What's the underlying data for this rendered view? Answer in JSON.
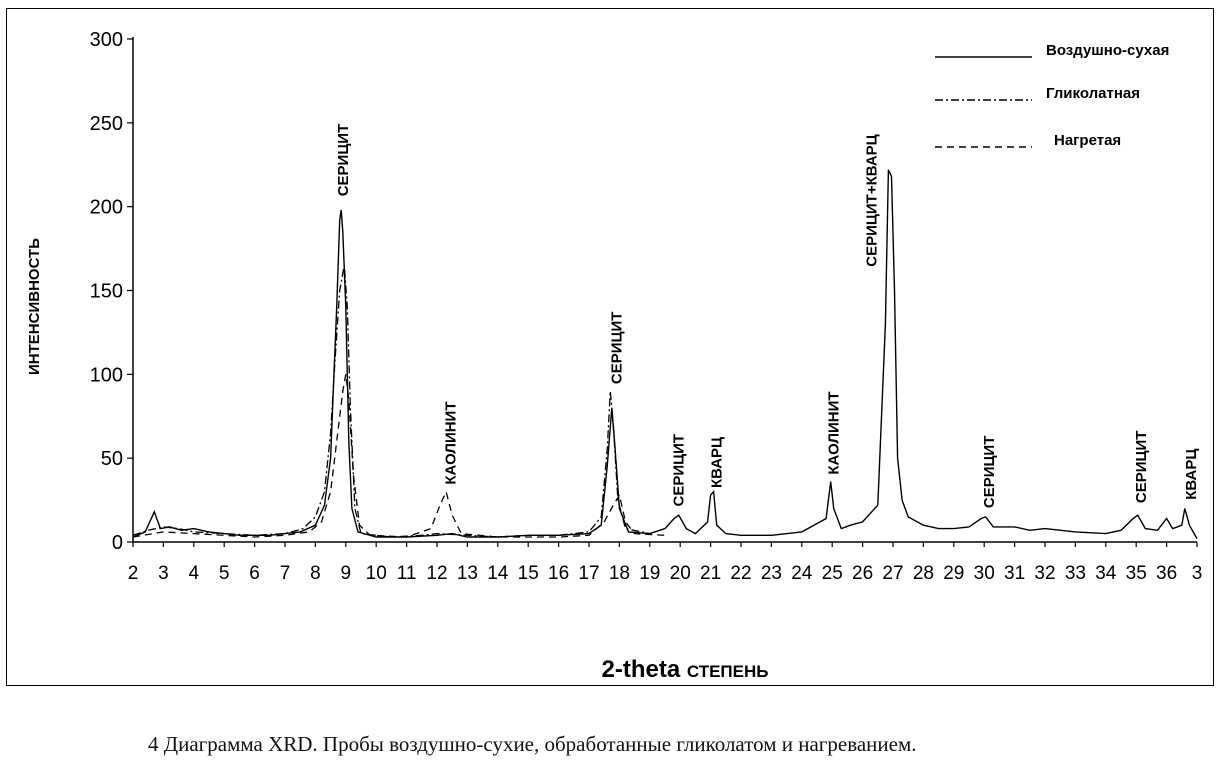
{
  "chart_data": {
    "type": "line",
    "title": "",
    "xlabel": {
      "bold": "2-theta",
      "rest": "СТЕПЕНЬ"
    },
    "ylabel": "ИНТЕНСИВНОСТЬ",
    "xlim": [
      2,
      37
    ],
    "ylim": [
      0,
      300
    ],
    "y_ticks": [
      "0",
      "50",
      "100",
      "150",
      "200",
      "250",
      "300"
    ],
    "x_ticks": [
      "2",
      "3",
      "4",
      "5",
      "6",
      "7",
      "8",
      "9",
      "10",
      "11",
      "12",
      "13",
      "14",
      "15",
      "16",
      "17",
      "18",
      "19",
      "20",
      "21",
      "22",
      "23",
      "24",
      "25",
      "26",
      "27",
      "28",
      "29",
      "30",
      "31",
      "32",
      "33",
      "34",
      "35",
      "36",
      "3"
    ],
    "legend_position": "top-right",
    "series": [
      {
        "name": "Воздушно-сухая",
        "dash": "solid",
        "points": [
          [
            2.0,
            3
          ],
          [
            2.4,
            6
          ],
          [
            2.7,
            18
          ],
          [
            2.9,
            8
          ],
          [
            3.2,
            9
          ],
          [
            3.6,
            7
          ],
          [
            4.0,
            8
          ],
          [
            4.5,
            6
          ],
          [
            5.0,
            5
          ],
          [
            5.5,
            4
          ],
          [
            6.0,
            4
          ],
          [
            6.5,
            4
          ],
          [
            7.0,
            5
          ],
          [
            7.5,
            6
          ],
          [
            8.0,
            10
          ],
          [
            8.3,
            22
          ],
          [
            8.5,
            50
          ],
          [
            8.6,
            95
          ],
          [
            8.7,
            140
          ],
          [
            8.8,
            192
          ],
          [
            8.85,
            198
          ],
          [
            8.9,
            185
          ],
          [
            9.0,
            140
          ],
          [
            9.1,
            60
          ],
          [
            9.2,
            20
          ],
          [
            9.4,
            6
          ],
          [
            10.0,
            3
          ],
          [
            11.0,
            3
          ],
          [
            12.0,
            4
          ],
          [
            12.5,
            5
          ],
          [
            13.0,
            3
          ],
          [
            14.0,
            3
          ],
          [
            15.0,
            4
          ],
          [
            16.0,
            4
          ],
          [
            17.0,
            5
          ],
          [
            17.4,
            10
          ],
          [
            17.6,
            45
          ],
          [
            17.75,
            80
          ],
          [
            17.85,
            58
          ],
          [
            18.0,
            20
          ],
          [
            18.3,
            6
          ],
          [
            19.0,
            5
          ],
          [
            19.5,
            8
          ],
          [
            19.8,
            14
          ],
          [
            19.95,
            16
          ],
          [
            20.2,
            8
          ],
          [
            20.5,
            5
          ],
          [
            20.9,
            12
          ],
          [
            21.0,
            28
          ],
          [
            21.1,
            30
          ],
          [
            21.2,
            10
          ],
          [
            21.5,
            5
          ],
          [
            22.0,
            4
          ],
          [
            23.0,
            4
          ],
          [
            24.0,
            6
          ],
          [
            24.8,
            14
          ],
          [
            24.95,
            36
          ],
          [
            25.05,
            20
          ],
          [
            25.3,
            8
          ],
          [
            25.6,
            10
          ],
          [
            26.0,
            12
          ],
          [
            26.5,
            22
          ],
          [
            26.75,
            130
          ],
          [
            26.85,
            222
          ],
          [
            26.95,
            218
          ],
          [
            27.05,
            150
          ],
          [
            27.15,
            50
          ],
          [
            27.3,
            25
          ],
          [
            27.5,
            15
          ],
          [
            28.0,
            10
          ],
          [
            28.5,
            8
          ],
          [
            29.0,
            8
          ],
          [
            29.5,
            9
          ],
          [
            29.9,
            14
          ],
          [
            30.05,
            15
          ],
          [
            30.3,
            9
          ],
          [
            31.0,
            9
          ],
          [
            31.5,
            7
          ],
          [
            32.0,
            8
          ],
          [
            33.0,
            6
          ],
          [
            34.0,
            5
          ],
          [
            34.5,
            7
          ],
          [
            34.9,
            14
          ],
          [
            35.05,
            16
          ],
          [
            35.3,
            8
          ],
          [
            35.7,
            7
          ],
          [
            36.0,
            14
          ],
          [
            36.2,
            8
          ],
          [
            36.5,
            10
          ],
          [
            36.6,
            20
          ],
          [
            36.75,
            10
          ],
          [
            37.0,
            2
          ]
        ]
      },
      {
        "name": "Гликолатная",
        "dash": "dash-dot",
        "points": [
          [
            2.0,
            4
          ],
          [
            2.5,
            7
          ],
          [
            3.0,
            9
          ],
          [
            3.5,
            8
          ],
          [
            4.0,
            6
          ],
          [
            5.0,
            5
          ],
          [
            6.0,
            4
          ],
          [
            7.0,
            5
          ],
          [
            7.6,
            8
          ],
          [
            8.0,
            15
          ],
          [
            8.3,
            30
          ],
          [
            8.5,
            65
          ],
          [
            8.65,
            110
          ],
          [
            8.8,
            150
          ],
          [
            8.95,
            165
          ],
          [
            9.05,
            140
          ],
          [
            9.15,
            80
          ],
          [
            9.3,
            20
          ],
          [
            9.5,
            5
          ],
          [
            10.5,
            3
          ],
          [
            11.5,
            4
          ],
          [
            12.0,
            5
          ],
          [
            13.0,
            4
          ],
          [
            14.0,
            3
          ],
          [
            15.0,
            4
          ],
          [
            16.0,
            4
          ],
          [
            17.0,
            6
          ],
          [
            17.4,
            15
          ],
          [
            17.6,
            55
          ],
          [
            17.7,
            90
          ],
          [
            17.8,
            70
          ],
          [
            17.95,
            25
          ],
          [
            18.2,
            8
          ],
          [
            19.0,
            5
          ]
        ]
      },
      {
        "name": "Нагретая",
        "dash": "dashed",
        "points": [
          [
            2.0,
            3
          ],
          [
            3.0,
            6
          ],
          [
            4.0,
            5
          ],
          [
            5.0,
            4
          ],
          [
            6.0,
            3
          ],
          [
            7.0,
            4
          ],
          [
            7.8,
            6
          ],
          [
            8.2,
            12
          ],
          [
            8.5,
            30
          ],
          [
            8.7,
            60
          ],
          [
            8.9,
            90
          ],
          [
            9.0,
            100
          ],
          [
            9.1,
            85
          ],
          [
            9.25,
            40
          ],
          [
            9.45,
            10
          ],
          [
            9.8,
            4
          ],
          [
            11.0,
            3
          ],
          [
            11.8,
            8
          ],
          [
            12.1,
            22
          ],
          [
            12.3,
            30
          ],
          [
            12.5,
            16
          ],
          [
            12.8,
            5
          ],
          [
            14.0,
            3
          ],
          [
            15.0,
            3
          ],
          [
            16.0,
            3
          ],
          [
            17.0,
            4
          ],
          [
            17.5,
            12
          ],
          [
            17.8,
            22
          ],
          [
            18.0,
            28
          ],
          [
            18.2,
            12
          ],
          [
            18.5,
            5
          ],
          [
            19.5,
            4
          ]
        ]
      }
    ],
    "annotations": [
      {
        "text": "СЕРИЦИТ",
        "x": 8.9,
        "y": 205
      },
      {
        "text": "КАОЛИНИТ",
        "x": 12.45,
        "y": 33
      },
      {
        "text": "СЕРИЦИТ",
        "x": 17.9,
        "y": 93
      },
      {
        "text": "СЕРИЦИТ",
        "x": 19.95,
        "y": 20
      },
      {
        "text": "КВАРЦ",
        "x": 21.2,
        "y": 31
      },
      {
        "text": "КАОЛИНИТ",
        "x": 25.05,
        "y": 39
      },
      {
        "text": "СЕРИЦИТ+КВАРЦ",
        "x": 26.3,
        "y": 163
      },
      {
        "text": "СЕРИЦИТ",
        "x": 30.15,
        "y": 19
      },
      {
        "text": "СЕРИЦИТ",
        "x": 35.15,
        "y": 22
      },
      {
        "text": "КВАРЦ",
        "x": 36.8,
        "y": 24
      }
    ]
  },
  "caption": "4 Диаграмма XRD. Пробы воздушно-сухие, обработанные гликолатом и нагреванием."
}
